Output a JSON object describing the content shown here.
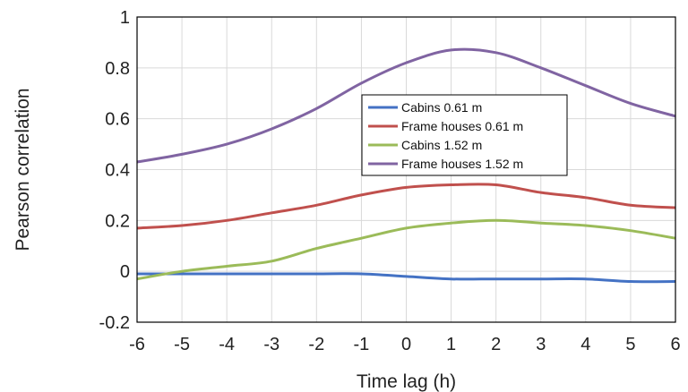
{
  "chart_data": {
    "type": "line",
    "title": "",
    "xlabel": "Time lag (h)",
    "ylabel": "Pearson correlation",
    "xlim": [
      -6,
      6
    ],
    "ylim": [
      -0.2,
      1
    ],
    "xticks": [
      -6,
      -5,
      -4,
      -3,
      -2,
      -1,
      0,
      1,
      2,
      3,
      4,
      5,
      6
    ],
    "yticks": [
      -0.2,
      0,
      0.2,
      0.4,
      0.6,
      0.8,
      1
    ],
    "ytick_labels": [
      "-0.2",
      "0",
      "0.2",
      "0.4",
      "0.6",
      "0.8",
      "1"
    ],
    "grid": true,
    "legend_position": "center-right",
    "x": [
      -6,
      -5,
      -4,
      -3,
      -2,
      -1,
      0,
      1,
      2,
      3,
      4,
      5,
      6
    ],
    "series": [
      {
        "name": "Cabins 0.61 m",
        "color": "#4472C4",
        "values": [
          -0.01,
          -0.01,
          -0.01,
          -0.01,
          -0.01,
          -0.01,
          -0.02,
          -0.03,
          -0.03,
          -0.03,
          -0.03,
          -0.04,
          -0.04
        ]
      },
      {
        "name": "Frame houses 0.61 m",
        "color": "#C0504D",
        "values": [
          0.17,
          0.18,
          0.2,
          0.23,
          0.26,
          0.3,
          0.33,
          0.34,
          0.34,
          0.31,
          0.29,
          0.26,
          0.25
        ]
      },
      {
        "name": "Cabins 1.52 m",
        "color": "#9BBB59",
        "values": [
          -0.03,
          0.0,
          0.02,
          0.04,
          0.09,
          0.13,
          0.17,
          0.19,
          0.2,
          0.19,
          0.18,
          0.16,
          0.13
        ]
      },
      {
        "name": "Frame houses 1.52 m",
        "color": "#8064A2",
        "values": [
          0.43,
          0.46,
          0.5,
          0.56,
          0.64,
          0.74,
          0.82,
          0.87,
          0.86,
          0.8,
          0.73,
          0.66,
          0.61
        ]
      }
    ]
  }
}
